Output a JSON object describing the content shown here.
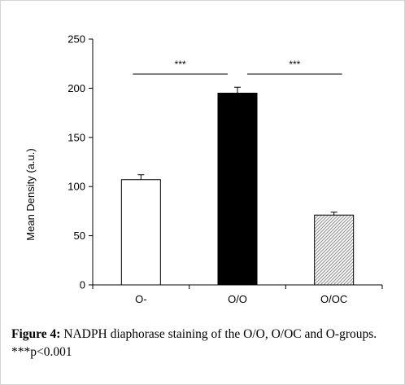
{
  "chart_data": {
    "type": "bar",
    "categories": [
      "O-",
      "O/O",
      "O/OC"
    ],
    "values": [
      107,
      195,
      71
    ],
    "errors": [
      5,
      6,
      3
    ],
    "ylabel": "Mean Density (a.u.)",
    "xlabel": "",
    "ylim": [
      0,
      250
    ],
    "yticks": [
      0,
      50,
      100,
      150,
      200,
      250
    ],
    "grid": false,
    "bar_fills": [
      "white",
      "black",
      "hatched-gray"
    ],
    "colors": {
      "bar_outline": "#000000",
      "solid": "#000000",
      "hatch": "#8c8c8c"
    },
    "annotations": [
      {
        "from": 0,
        "to": 1,
        "label": "***"
      },
      {
        "from": 1,
        "to": 2,
        "label": "***"
      }
    ]
  },
  "caption": {
    "label": "Figure 4:",
    "text": " NADPH diaphorase staining of the O/O, O/OC and O-groups. ***p<0.001"
  }
}
